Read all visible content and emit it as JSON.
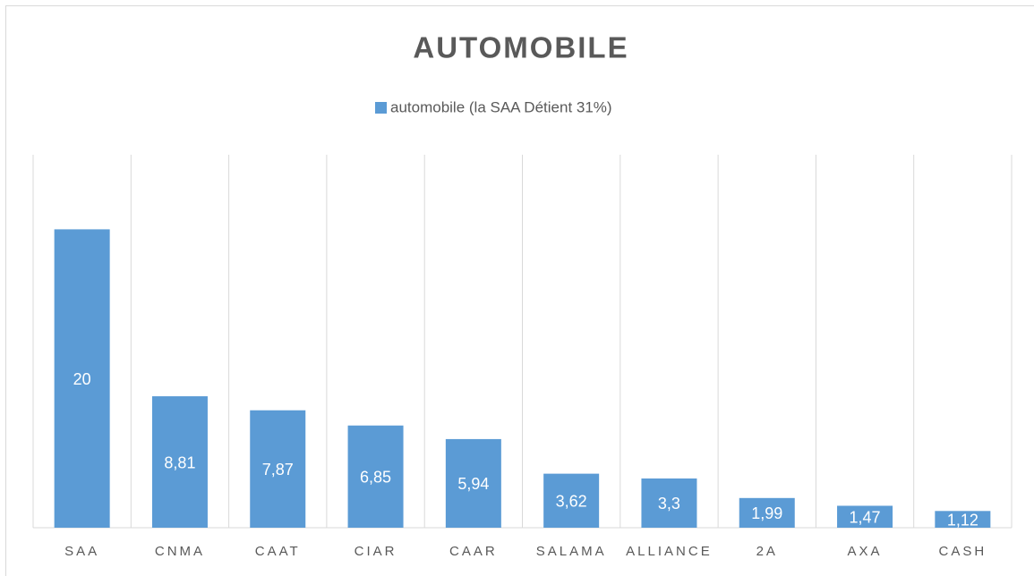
{
  "chart_data": {
    "type": "bar",
    "title": "AUTOMOBILE",
    "categories": [
      "SAA",
      "CNMA",
      "CAAT",
      "CIAR",
      "CAAR",
      "SALAMA",
      "ALLIANCE",
      "2A",
      "AXA",
      "CASH"
    ],
    "series": [
      {
        "name": "automobile (la SAA Détient 31%)",
        "color": "#5b9bd5",
        "values": [
          20,
          8.81,
          7.87,
          6.85,
          5.94,
          3.62,
          3.3,
          1.99,
          1.47,
          1.12
        ],
        "value_labels": [
          "20",
          "8,81",
          "7,87",
          "6,85",
          "5,94",
          "3,62",
          "3,3",
          "1,99",
          "1,47",
          "1,12"
        ]
      }
    ],
    "ylim": [
      0,
      25
    ],
    "grid": true,
    "legend": "top"
  }
}
